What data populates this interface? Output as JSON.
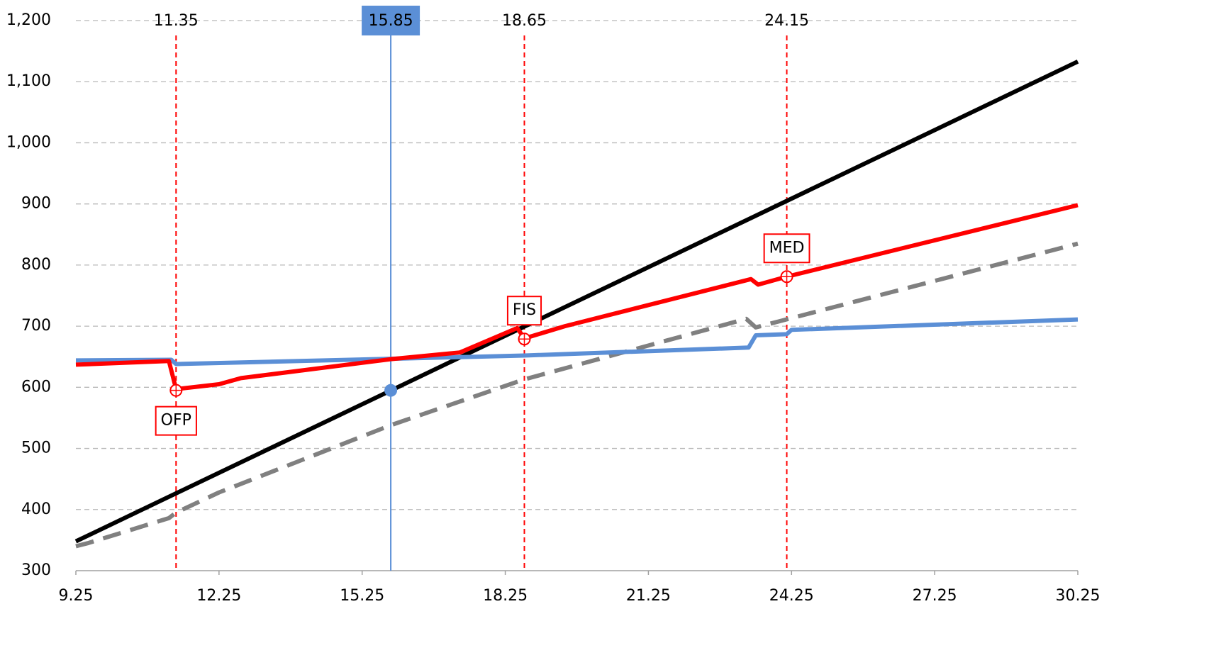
{
  "chart_data": {
    "type": "line",
    "xlim": [
      9.25,
      30.25
    ],
    "xticks": [
      9.25,
      12.25,
      15.25,
      18.25,
      21.25,
      24.25,
      27.25,
      30.25
    ],
    "ylim": [
      300,
      1200
    ],
    "yticks": [
      300,
      400,
      500,
      600,
      700,
      800,
      900,
      {
        "value": 1000,
        "label": "1,000"
      },
      {
        "value": 1100,
        "label": "1,100"
      },
      {
        "value": 1200,
        "label": "1,200"
      }
    ],
    "grid": true,
    "series": [
      {
        "color": "#000000",
        "style": "solid",
        "x": [
          9.25,
          30.25
        ],
        "values": [
          348,
          1133
        ]
      },
      {
        "color": "#808080",
        "style": "dashed",
        "x": [
          9.25,
          9.5,
          11.2,
          11.35,
          12.25,
          15.85,
          18.65,
          23.3,
          23.5,
          30.25
        ],
        "values": [
          340,
          345,
          386,
          395,
          428,
          538,
          613,
          712,
          698,
          835
        ]
      },
      {
        "color": "#5b8fd6",
        "style": "solid",
        "x": [
          9.25,
          11.25,
          11.35,
          18.65,
          23.35,
          23.5,
          24.15,
          24.25,
          30.25
        ],
        "values": [
          644,
          645,
          638,
          652,
          665,
          685,
          687,
          694,
          711
        ]
      },
      {
        "color": "#ff0000",
        "style": "solid",
        "x": [
          9.25,
          11.2,
          11.35,
          12.25,
          12.71,
          15.85,
          17.3,
          18.5,
          18.65,
          19.5,
          23.4,
          23.55,
          24.15,
          30.25
        ],
        "values": [
          637,
          643,
          597,
          605,
          615,
          646,
          657,
          697,
          680,
          700,
          777,
          768,
          781,
          898
        ]
      }
    ],
    "markers": [
      {
        "x": 11.35,
        "color": "#ff0000",
        "style": "dashed"
      },
      {
        "x": 15.85,
        "color": "#5b8fd6",
        "style": "solid",
        "boxed": true,
        "point": 595
      },
      {
        "x": 18.65,
        "color": "#ff0000",
        "style": "dashed"
      },
      {
        "x": 24.15,
        "color": "#ff0000",
        "style": "dashed"
      }
    ],
    "annotations": [
      {
        "x": 11.35,
        "y": 595,
        "label": "OFP",
        "position": "below"
      },
      {
        "x": 18.65,
        "y": 679,
        "label": "FIS",
        "position": "above"
      },
      {
        "x": 24.15,
        "y": 781,
        "label": "MED",
        "position": "above"
      }
    ],
    "annotation_color": "#ff0000"
  }
}
